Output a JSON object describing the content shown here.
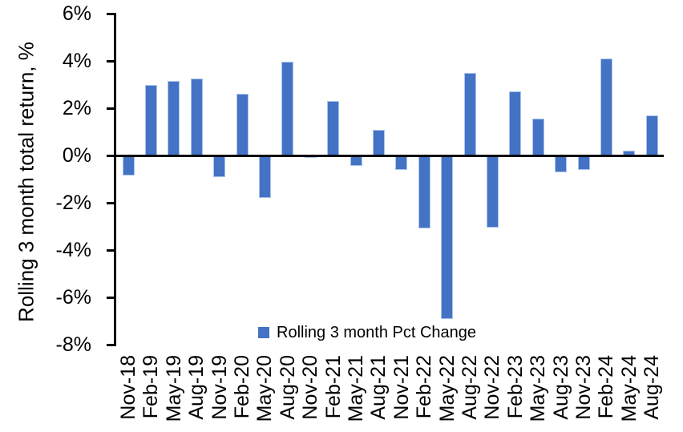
{
  "chart_data": {
    "type": "bar",
    "title": "",
    "xlabel": "",
    "ylabel": "Rolling 3 month total return, %",
    "categories": [
      "Nov-18",
      "Feb-19",
      "May-19",
      "Aug-19",
      "Nov-19",
      "Feb-20",
      "May-20",
      "Aug-20",
      "Nov-20",
      "Feb-21",
      "May-21",
      "Aug-21",
      "Nov-21",
      "Feb-22",
      "May-22",
      "Aug-22",
      "Nov-22",
      "Feb-23",
      "May-23",
      "Aug-23",
      "Nov-23",
      "Feb-24",
      "May-24",
      "Aug-24"
    ],
    "values": [
      -0.85,
      3.0,
      3.15,
      3.25,
      -0.9,
      2.6,
      -1.8,
      3.95,
      -0.1,
      2.3,
      -0.45,
      1.1,
      -0.6,
      -3.1,
      -6.9,
      3.5,
      -3.05,
      2.7,
      1.55,
      -0.7,
      -0.6,
      4.1,
      0.2,
      1.7
    ],
    "ylim": [
      -8,
      6
    ],
    "yticks": [
      {
        "value": 6,
        "label": "6%"
      },
      {
        "value": 4,
        "label": "4%"
      },
      {
        "value": 2,
        "label": "2%"
      },
      {
        "value": 0,
        "label": "0%"
      },
      {
        "value": -2,
        "label": "-2%"
      },
      {
        "value": -4,
        "label": "-4%"
      },
      {
        "value": -6,
        "label": "-6%"
      },
      {
        "value": -8,
        "label": "-8%"
      }
    ],
    "legend": {
      "label": "Rolling 3 month Pct Change",
      "position": "bottom-inside"
    },
    "colors": {
      "bar_fill": "#4472C4",
      "bar_border": "#A9C6EE",
      "axis": "#000000",
      "text": "#000000",
      "background": "#FFFFFF"
    },
    "grid": false
  }
}
